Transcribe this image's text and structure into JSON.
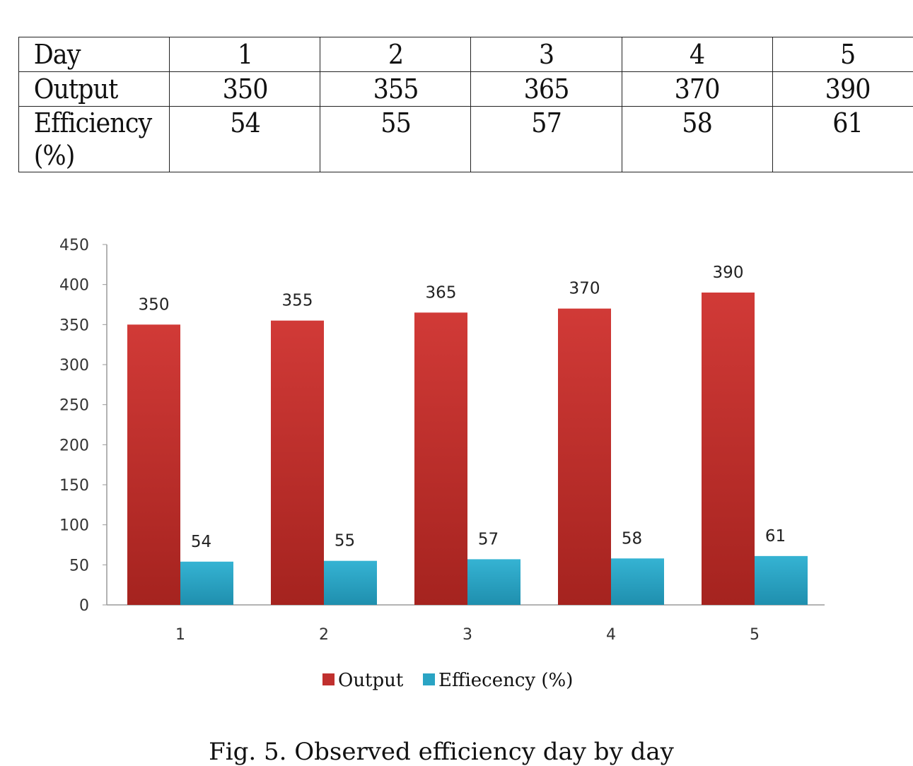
{
  "table": {
    "header": [
      "Day",
      "1",
      "2",
      "3",
      "4",
      "5"
    ],
    "rows": [
      [
        "Output",
        "350",
        "355",
        "365",
        "370",
        "390"
      ],
      [
        "Efficiency (%)",
        "54",
        "55",
        "57",
        "58",
        "61"
      ]
    ]
  },
  "chart_data": {
    "type": "bar",
    "categories": [
      "1",
      "2",
      "3",
      "4",
      "5"
    ],
    "series": [
      {
        "name": "Output",
        "values": [
          350,
          355,
          365,
          370,
          390
        ],
        "color": "#c0302e"
      },
      {
        "name": "Effiecency (%)",
        "values": [
          54,
          55,
          57,
          58,
          61
        ],
        "color": "#2aa4c4"
      }
    ],
    "ylim": [
      0,
      450
    ],
    "yticks": [
      0,
      50,
      100,
      150,
      200,
      250,
      300,
      350,
      400,
      450
    ],
    "data_labels": true,
    "grid": false,
    "legend_position": "bottom"
  },
  "caption": "Fig. 5. Observed efficiency day by day"
}
